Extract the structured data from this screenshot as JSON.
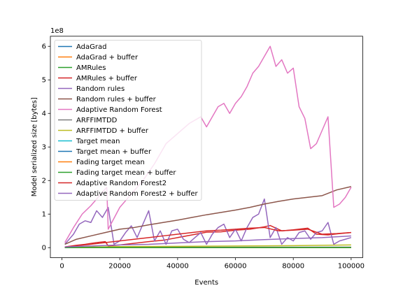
{
  "chart_data": {
    "type": "line",
    "title": "",
    "xlabel": "Events",
    "ylabel": "Model serialized size [bytes]",
    "y_multiplier_label": "1e8",
    "y_multiplier": 100000000,
    "xlim": [
      -4000,
      104000
    ],
    "ylim": [
      -0.3,
      6.3
    ],
    "xticks": [
      0,
      20000,
      40000,
      60000,
      80000,
      100000
    ],
    "xtick_labels": [
      "0",
      "20000",
      "40000",
      "60000",
      "80000",
      "100000"
    ],
    "yticks": [
      0,
      1,
      2,
      3,
      4,
      5,
      6
    ],
    "ytick_labels": [
      "0",
      "1",
      "2",
      "3",
      "4",
      "5",
      "6"
    ],
    "grid": false,
    "legend_position": "upper-left",
    "series": [
      {
        "name": "AdaGrad",
        "color": "#1f77b4",
        "x": [
          1000,
          100000
        ],
        "y": [
          0.001,
          0.001
        ]
      },
      {
        "name": "AdaGrad + buffer",
        "color": "#ff7f0e",
        "x": [
          1000,
          100000
        ],
        "y": [
          0.002,
          0.002
        ]
      },
      {
        "name": "AMRules",
        "color": "#2ca02c",
        "x": [
          1000,
          100000
        ],
        "y": [
          0.003,
          0.005
        ]
      },
      {
        "name": "AMRules + buffer",
        "color": "#d62728",
        "x": [
          1000,
          5000,
          8000,
          12000,
          15000,
          16000,
          20000,
          25000,
          30000,
          35000,
          40000,
          45000,
          50000,
          55000,
          60000,
          65000,
          70000,
          72000,
          76000,
          80000,
          85000,
          88000,
          92000,
          96000,
          100000
        ],
        "y": [
          0.02,
          0.07,
          0.1,
          0.15,
          0.18,
          0.05,
          0.08,
          0.13,
          0.18,
          0.22,
          0.3,
          0.38,
          0.46,
          0.47,
          0.52,
          0.55,
          0.62,
          0.66,
          0.5,
          0.53,
          0.58,
          0.4,
          0.38,
          0.42,
          0.45
        ]
      },
      {
        "name": "Random rules",
        "color": "#9467bd",
        "x": [
          1000,
          4000,
          6000,
          8000,
          10000,
          12000,
          14000,
          16000,
          18000,
          20000,
          22000,
          24000,
          26000,
          28000,
          30000,
          32000,
          34000,
          36000,
          38000,
          40000,
          42000,
          44000,
          46000,
          48000,
          50000,
          52000,
          54000,
          56000,
          58000,
          60000,
          62000,
          64000,
          66000,
          68000,
          70000,
          72000,
          74000,
          76000,
          78000,
          80000,
          82000,
          84000,
          86000,
          88000,
          90000,
          92000,
          94000,
          96000,
          98000,
          100000
        ],
        "y": [
          0.1,
          0.4,
          0.7,
          0.8,
          0.75,
          1.1,
          0.9,
          1.2,
          0.1,
          0.2,
          0.45,
          0.65,
          0.3,
          0.7,
          1.1,
          0.2,
          0.5,
          0.1,
          0.5,
          0.55,
          0.25,
          0.15,
          0.3,
          0.45,
          0.1,
          0.4,
          0.6,
          0.7,
          0.3,
          0.55,
          0.2,
          0.6,
          0.9,
          1.0,
          1.45,
          0.3,
          0.6,
          0.1,
          0.3,
          0.2,
          0.45,
          0.5,
          0.25,
          0.45,
          0.5,
          0.75,
          0.1,
          0.2,
          0.25,
          0.3
        ]
      },
      {
        "name": "Random rules + buffer",
        "color": "#8c564b",
        "x": [
          1000,
          5000,
          10000,
          15000,
          20000,
          25000,
          30000,
          35000,
          40000,
          45000,
          50000,
          55000,
          60000,
          65000,
          70000,
          75000,
          80000,
          85000,
          90000,
          95000,
          100000
        ],
        "y": [
          0.1,
          0.25,
          0.35,
          0.45,
          0.55,
          0.6,
          0.68,
          0.75,
          0.82,
          0.9,
          0.98,
          1.05,
          1.12,
          1.2,
          1.3,
          1.38,
          1.45,
          1.5,
          1.55,
          1.72,
          1.82
        ]
      },
      {
        "name": "Adaptive Random Forest",
        "color": "#e377c2",
        "x": [
          1000,
          4000,
          7000,
          10000,
          13000,
          15500,
          16000,
          20000,
          24000,
          28000,
          32000,
          36000,
          40000,
          44000,
          48000,
          50000,
          52000,
          54000,
          56000,
          58000,
          60000,
          62000,
          64000,
          66000,
          68000,
          70000,
          72000,
          74000,
          76000,
          78000,
          80000,
          82000,
          84000,
          86000,
          88000,
          90000,
          92000,
          94000,
          96000,
          98000,
          100000
        ],
        "y": [
          0.15,
          0.6,
          1.0,
          1.25,
          1.55,
          1.8,
          0.55,
          1.2,
          1.6,
          2.0,
          2.5,
          3.1,
          3.4,
          3.7,
          3.9,
          3.6,
          3.9,
          4.2,
          4.3,
          4.0,
          4.3,
          4.5,
          4.8,
          5.2,
          5.4,
          5.7,
          6.0,
          5.4,
          5.6,
          5.2,
          5.35,
          4.2,
          3.85,
          2.95,
          3.1,
          3.5,
          3.9,
          1.2,
          1.3,
          1.5,
          1.8
        ]
      },
      {
        "name": "ARFFIMTDD",
        "color": "#7f7f7f",
        "x": [
          1000,
          100000
        ],
        "y": [
          0.005,
          0.015
        ]
      },
      {
        "name": "ARFFIMTDD + buffer",
        "color": "#bcbd22",
        "x": [
          1000,
          20000,
          40000,
          60000,
          80000,
          100000
        ],
        "y": [
          0.01,
          0.03,
          0.04,
          0.05,
          0.06,
          0.08
        ]
      },
      {
        "name": "Target mean",
        "color": "#17becf",
        "x": [
          1000,
          100000
        ],
        "y": [
          0.0005,
          0.0005
        ]
      },
      {
        "name": "Target mean + buffer",
        "color": "#1f77b4",
        "x": [
          1000,
          100000
        ],
        "y": [
          0.001,
          0.002
        ]
      },
      {
        "name": "Fading target mean",
        "color": "#ff7f0e",
        "x": [
          1000,
          100000
        ],
        "y": [
          0.0005,
          0.0005
        ]
      },
      {
        "name": "Fading target mean + buffer",
        "color": "#2ca02c",
        "x": [
          1000,
          100000
        ],
        "y": [
          0.001,
          0.002
        ]
      },
      {
        "name": "Adaptive Random Forest2",
        "color": "#d62728",
        "x": [
          1000,
          5000,
          10000,
          15000,
          20000,
          25000,
          30000,
          35000,
          40000,
          45000,
          50000,
          55000,
          60000,
          65000,
          70000,
          75000,
          80000,
          85000,
          90000,
          95000,
          100000
        ],
        "y": [
          0.02,
          0.06,
          0.1,
          0.15,
          0.2,
          0.25,
          0.3,
          0.35,
          0.4,
          0.45,
          0.5,
          0.52,
          0.55,
          0.58,
          0.6,
          0.5,
          0.52,
          0.55,
          0.4,
          0.42,
          0.45
        ]
      },
      {
        "name": "Adaptive Random Forest2 + buffer",
        "color": "#9467bd",
        "x": [
          1000,
          10000,
          20000,
          30000,
          40000,
          50000,
          60000,
          70000,
          80000,
          90000,
          100000
        ],
        "y": [
          0.02,
          0.05,
          0.08,
          0.1,
          0.14,
          0.18,
          0.2,
          0.24,
          0.27,
          0.3,
          0.35
        ]
      }
    ]
  }
}
